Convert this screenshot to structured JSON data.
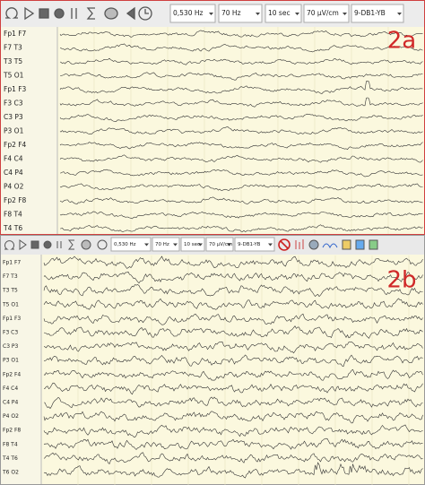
{
  "panels": [
    {
      "label": "2a",
      "toolbar": [
        "0,530 Hz",
        "70 Hz",
        "10 sec",
        "70 µV/cm",
        "9-DB1-YB"
      ],
      "channels": [
        "Fp1 F7",
        "F7 T3",
        "T3 T5",
        "T5 O1",
        "Fp1 F3",
        "F3 C3",
        "C3 P3",
        "P3 O1",
        "Fp2 F4",
        "F4 C4",
        "C4 P4",
        "P4 O2",
        "Fp2 F8",
        "F8 T4",
        "T4 T6"
      ]
    },
    {
      "label": "2b",
      "toolbar": [
        "0,530 Hz",
        "70 Hz",
        "10 sec",
        "70 µV/cm",
        "9-DB1-YB"
      ],
      "channels": [
        "Fp1 F7",
        "F7 T3",
        "T3 T5",
        "T5 O1",
        "Fp1 F3",
        "F3 C3",
        "C3 P3",
        "P3 O1",
        "Fp2 F4",
        "F4 C4",
        "C4 P4",
        "P4 O2",
        "Fp2 F8",
        "F8 T4",
        "T4 T6",
        "T6 O2"
      ]
    }
  ]
}
